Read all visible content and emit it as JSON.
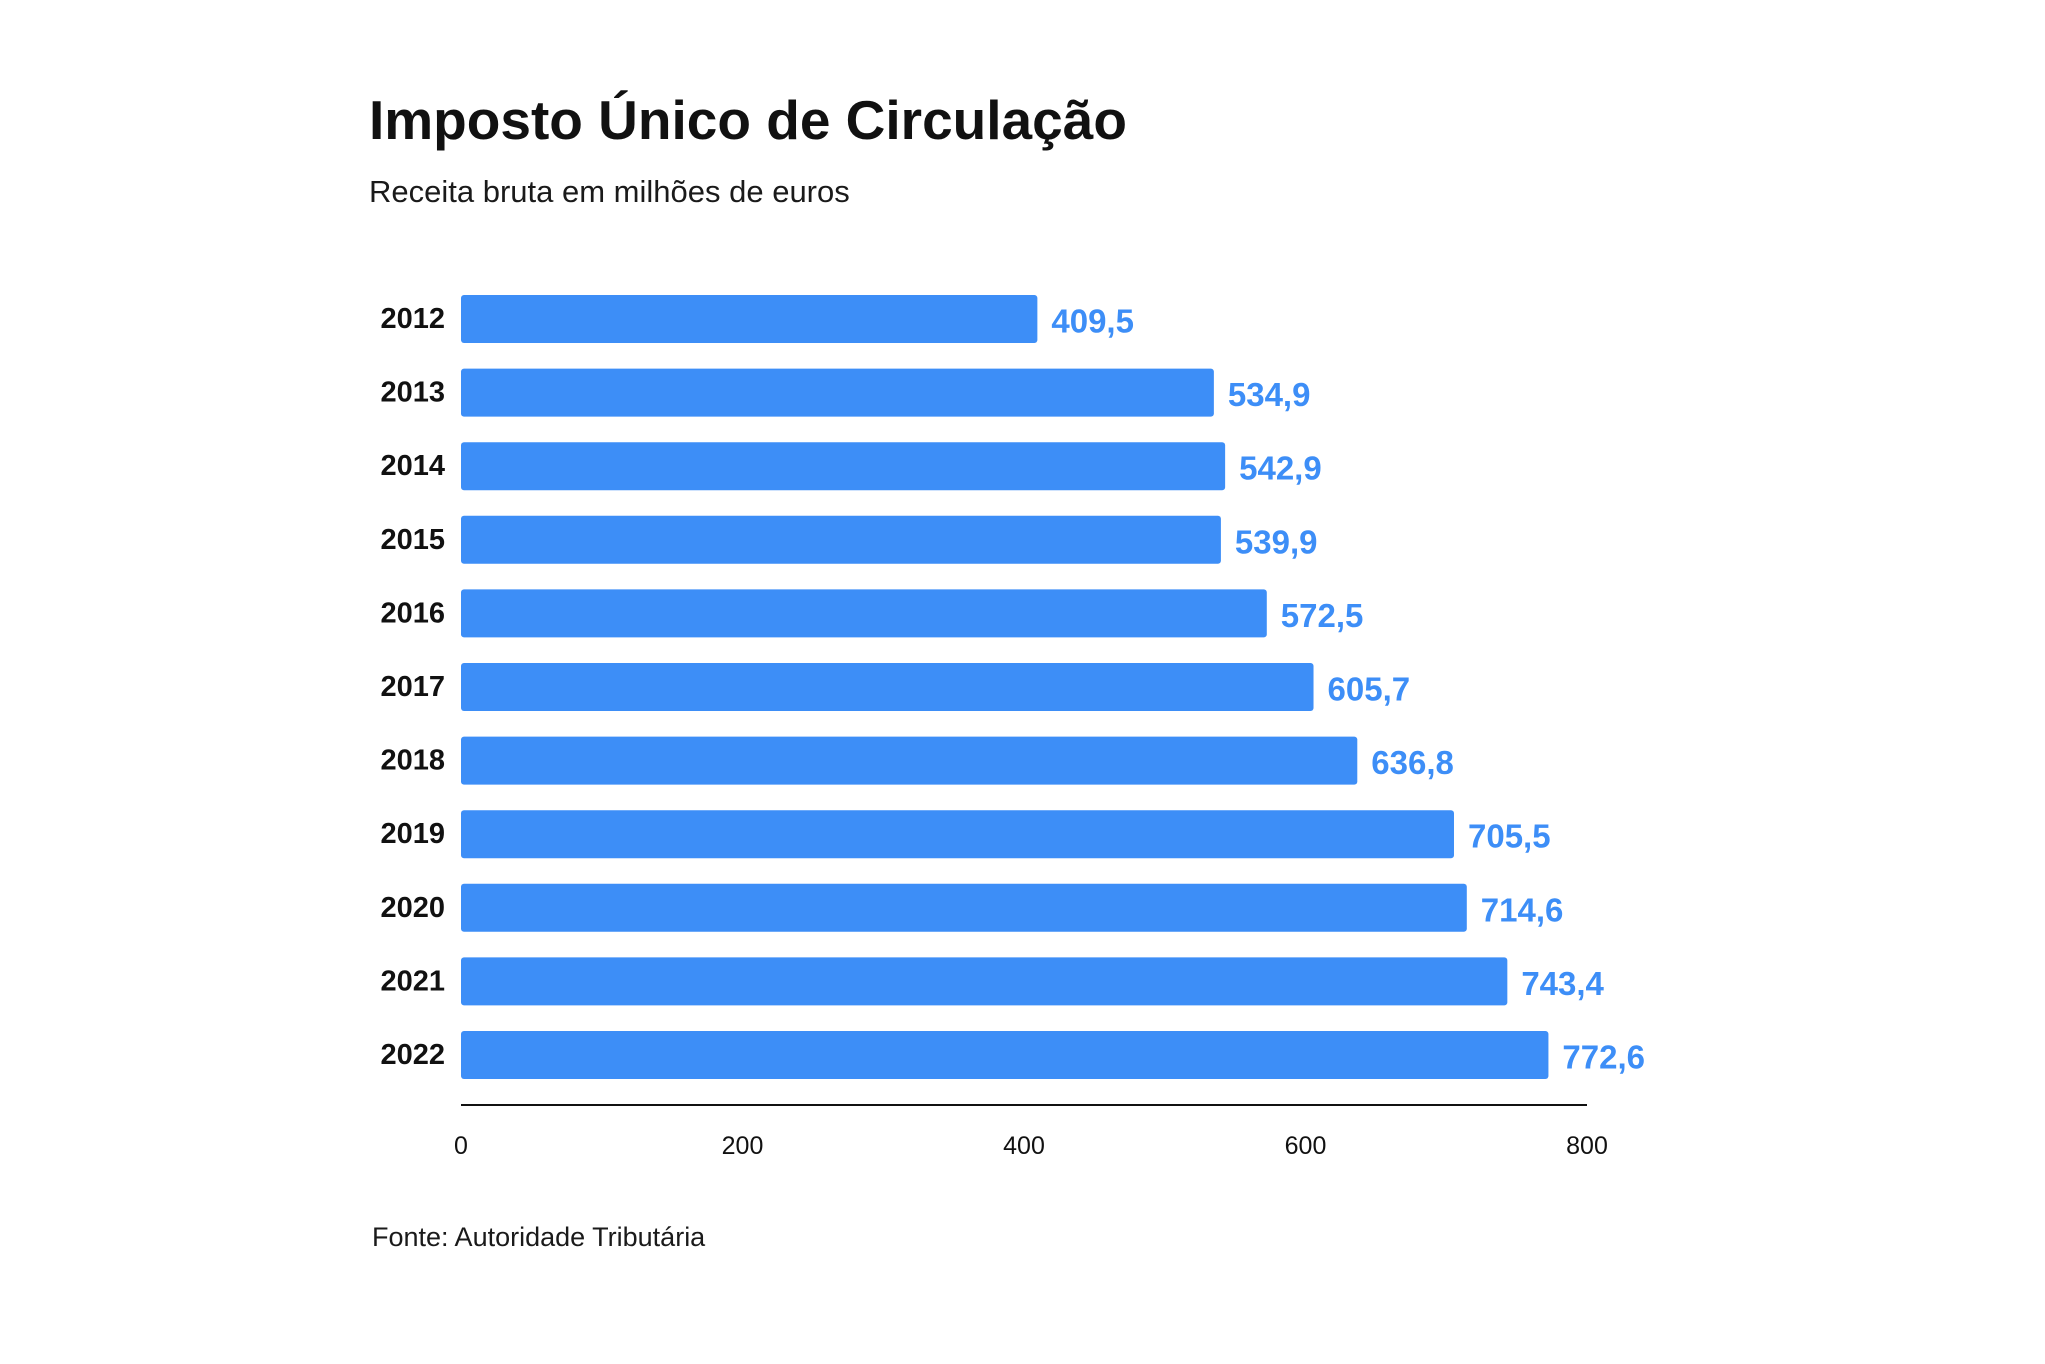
{
  "chart_data": {
    "type": "bar",
    "orientation": "horizontal",
    "title": "Imposto Único de Circulação",
    "subtitle": "Receita bruta em milhões de euros",
    "source": "Fonte: Autoridade Tributária",
    "categories": [
      "2012",
      "2013",
      "2014",
      "2015",
      "2016",
      "2017",
      "2018",
      "2019",
      "2020",
      "2021",
      "2022"
    ],
    "values": [
      409.5,
      534.9,
      542.9,
      539.9,
      572.5,
      605.7,
      636.8,
      705.5,
      714.6,
      743.4,
      772.6
    ],
    "value_labels": [
      "409,5",
      "534,9",
      "542,9",
      "539,9",
      "572,5",
      "605,7",
      "636,8",
      "705,5",
      "714,6",
      "743,4",
      "772,6"
    ],
    "xlabel": "",
    "ylabel": "",
    "xlim": [
      0,
      800
    ],
    "x_ticks": [
      0,
      200,
      400,
      600,
      800
    ],
    "grid": false,
    "legend": "none",
    "colors": {
      "bar": "#3d8ef7",
      "value_label": "#3d8ef7"
    }
  }
}
